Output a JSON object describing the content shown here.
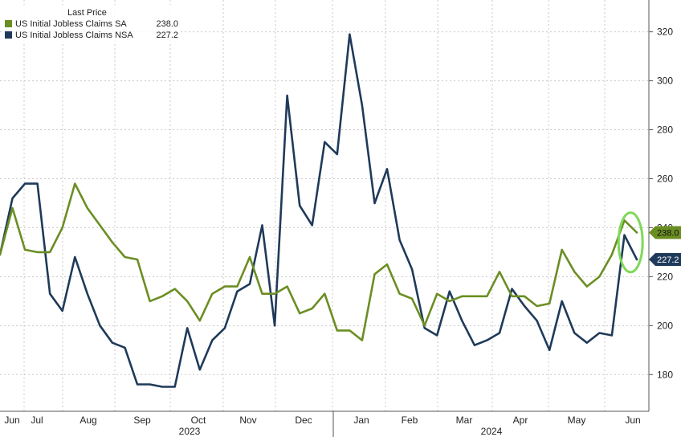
{
  "chart_data": {
    "type": "line",
    "legend": {
      "title": "Last Price",
      "placement": "top-left"
    },
    "y_axis": {
      "position": "right",
      "ylim": [
        165,
        333
      ],
      "ticks": [
        180,
        200,
        220,
        240,
        260,
        280,
        300,
        320
      ]
    },
    "x_axis": {
      "month_labels": [
        "Jun",
        "Jul",
        "Aug",
        "Sep",
        "Oct",
        "Nov",
        "Dec",
        "Jan",
        "Feb",
        "Mar",
        "Apr",
        "May",
        "Jun"
      ],
      "year_labels": [
        "2023",
        "2024"
      ]
    },
    "grid": true,
    "series": [
      {
        "name": "US Initial Jobless Claims SA",
        "last_value_label": "238.0",
        "color": "#6b8e23",
        "values": [
          229,
          248,
          231,
          230,
          230,
          240,
          258,
          248,
          241,
          234,
          228,
          227,
          210,
          212,
          215,
          210,
          202,
          213,
          216,
          216,
          228,
          213,
          213,
          216,
          205,
          207,
          213,
          198,
          198,
          194,
          221,
          225,
          213,
          211,
          200,
          213,
          210,
          212,
          212,
          212,
          222,
          212,
          212,
          208,
          209,
          231,
          222,
          216,
          220,
          229,
          243,
          238
        ]
      },
      {
        "name": "US Initial Jobless Claims NSA",
        "last_value_label": "227.2",
        "color": "#1f3a5a",
        "values": [
          229,
          252,
          258,
          258,
          213,
          206,
          228,
          213,
          200,
          193,
          191,
          176,
          176,
          175,
          175,
          199,
          182,
          194,
          199,
          214,
          217,
          241,
          200,
          294,
          249,
          241,
          275,
          270,
          319,
          290,
          250,
          264,
          235,
          223,
          199,
          196,
          214,
          202,
          192,
          194,
          197,
          215,
          208,
          202,
          190,
          210,
          197,
          193,
          197,
          196,
          237,
          227
        ]
      }
    ],
    "annotations": [
      {
        "type": "ellipse-highlight",
        "target": "latest values",
        "color": "#7ed957"
      }
    ]
  }
}
